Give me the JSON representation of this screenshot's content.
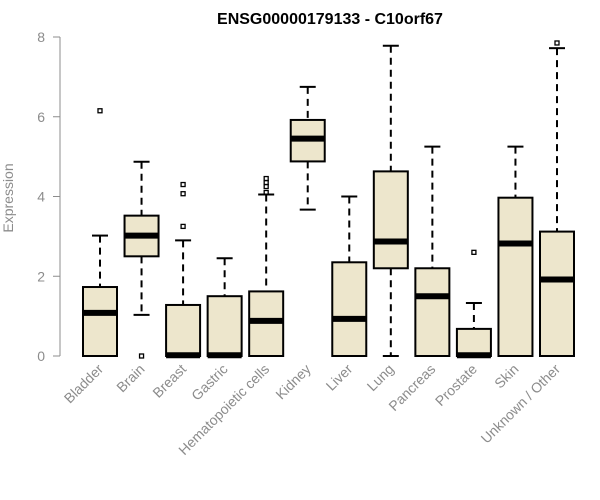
{
  "chart_data": {
    "type": "boxplot",
    "title": "ENSG00000179133 - C10orf67",
    "ylabel": "Expression",
    "xlabel": "",
    "ylim": [
      0,
      8
    ],
    "yticks": [
      0,
      2,
      4,
      6,
      8
    ],
    "grid": false,
    "legend": "none",
    "box_fill": "#ede6cc",
    "box_stroke": "#000000",
    "axis_color": "#8c8c8c",
    "categories": [
      "Bladder",
      "Brain",
      "Breast",
      "Gastric",
      "Hematopoietic cells",
      "Kidney",
      "Liver",
      "Lung",
      "Pancreas",
      "Prostate",
      "Skin",
      "Unknown / Other"
    ],
    "boxes": [
      {
        "name": "Bladder",
        "whisker_low": 0,
        "q1": 0,
        "median": 1.08,
        "q3": 1.73,
        "whisker_high": 3.02,
        "outliers": [
          6.15
        ]
      },
      {
        "name": "Brain",
        "whisker_low": 1.03,
        "q1": 2.5,
        "median": 3.02,
        "q3": 3.52,
        "whisker_high": 4.87,
        "outliers": [
          0.0
        ]
      },
      {
        "name": "Breast",
        "whisker_low": 0,
        "q1": 0,
        "median": 0.02,
        "q3": 1.28,
        "whisker_high": 2.9,
        "outliers": [
          3.25,
          4.07,
          4.3
        ]
      },
      {
        "name": "Gastric",
        "whisker_low": 0,
        "q1": 0,
        "median": 0.02,
        "q3": 1.5,
        "whisker_high": 2.45,
        "outliers": []
      },
      {
        "name": "Hematopoietic cells",
        "whisker_low": 0,
        "q1": 0,
        "median": 0.88,
        "q3": 1.62,
        "whisker_high": 4.05,
        "outliers": [
          4.1,
          4.25,
          4.35,
          4.45
        ]
      },
      {
        "name": "Kidney",
        "whisker_low": 3.67,
        "q1": 4.88,
        "median": 5.45,
        "q3": 5.92,
        "whisker_high": 6.75,
        "outliers": []
      },
      {
        "name": "Liver",
        "whisker_low": 0,
        "q1": 0,
        "median": 0.93,
        "q3": 2.35,
        "whisker_high": 4.0,
        "outliers": []
      },
      {
        "name": "Lung",
        "whisker_low": 0,
        "q1": 2.2,
        "median": 2.87,
        "q3": 4.63,
        "whisker_high": 7.78,
        "outliers": []
      },
      {
        "name": "Pancreas",
        "whisker_low": 0,
        "q1": 0,
        "median": 1.5,
        "q3": 2.2,
        "whisker_high": 5.25,
        "outliers": []
      },
      {
        "name": "Prostate",
        "whisker_low": 0,
        "q1": 0,
        "median": 0.02,
        "q3": 0.68,
        "whisker_high": 1.33,
        "outliers": [
          2.6
        ]
      },
      {
        "name": "Skin",
        "whisker_low": 0,
        "q1": 0,
        "median": 2.82,
        "q3": 3.97,
        "whisker_high": 5.25,
        "outliers": []
      },
      {
        "name": "Unknown / Other",
        "whisker_low": 0,
        "q1": 0,
        "median": 1.92,
        "q3": 3.12,
        "whisker_high": 7.72,
        "outliers": [
          7.85
        ]
      }
    ]
  }
}
